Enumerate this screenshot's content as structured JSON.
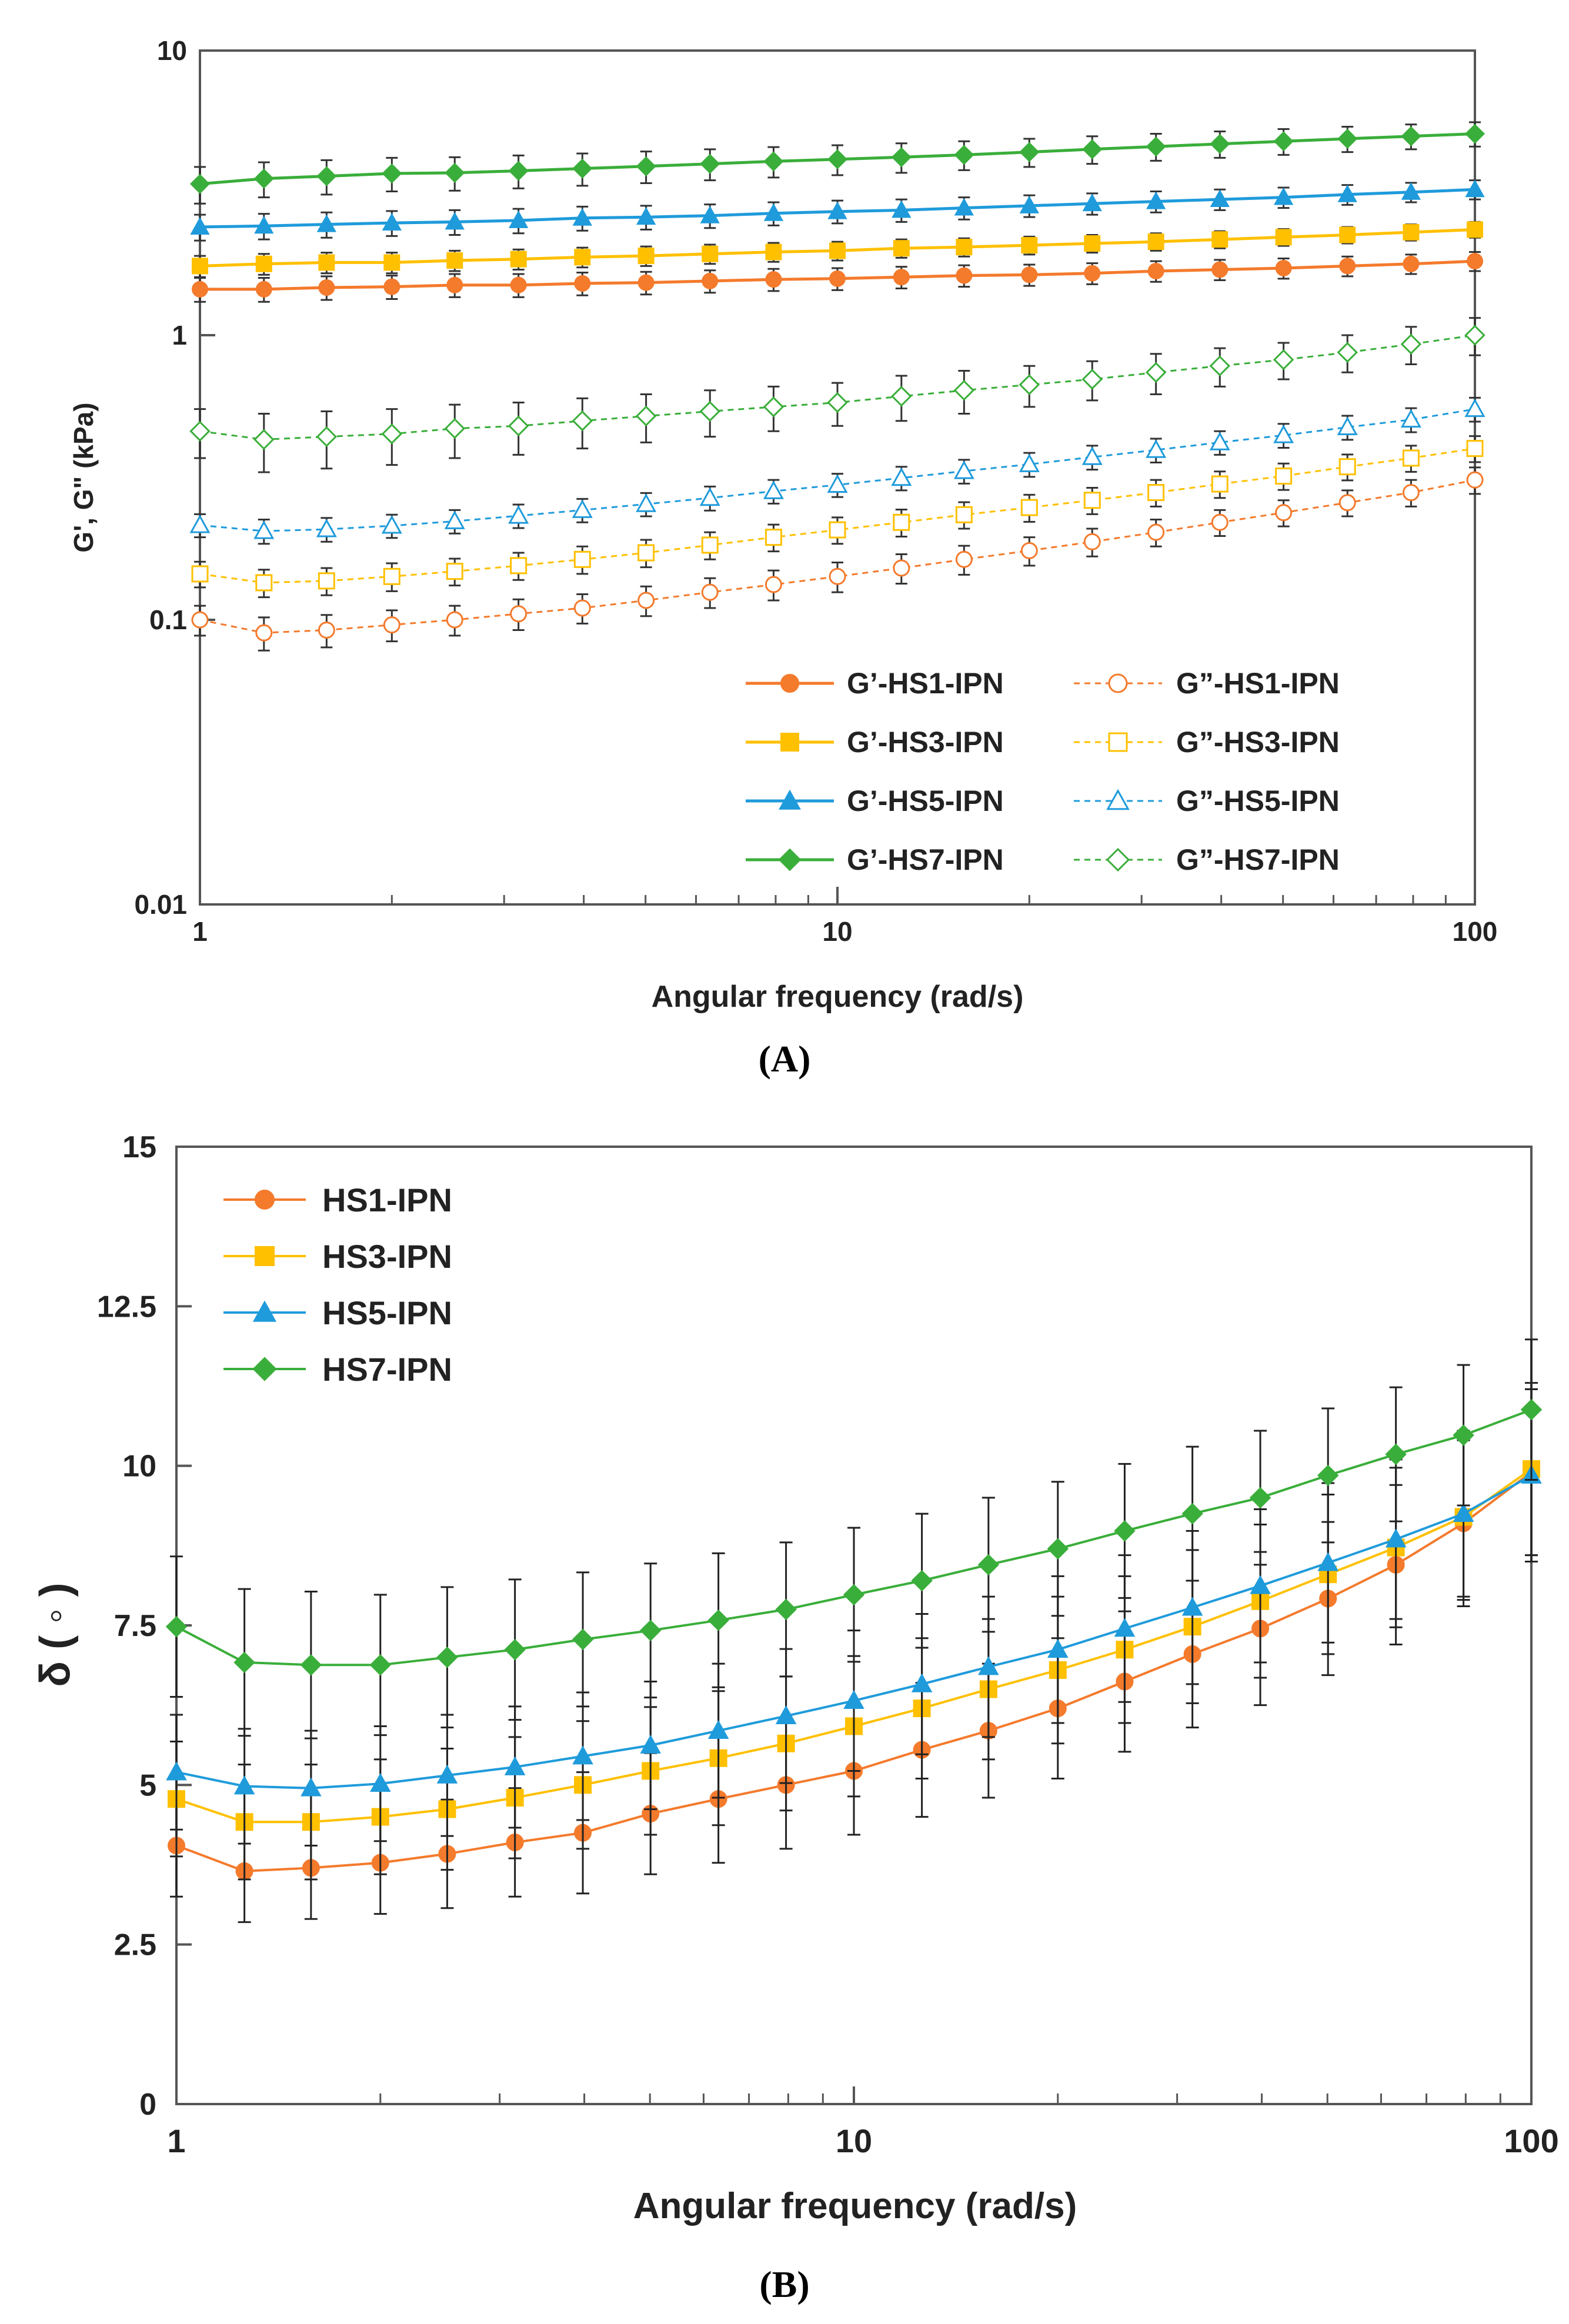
{
  "chart_data": [
    {
      "type": "line",
      "panel_label": "(A)",
      "xlabel": "Angular frequency (rad/s)",
      "ylabel": "G', G\" (kPa)",
      "xscale": "log",
      "yscale": "log",
      "xlim": [
        1,
        100
      ],
      "ylim": [
        0.01,
        10
      ],
      "x_tick_labels": [
        "1",
        "10",
        "100"
      ],
      "y_tick_labels": [
        "0.01",
        "0.1",
        "1",
        "10"
      ],
      "legend_position": "lower-right",
      "x": [
        1,
        1.26,
        1.58,
        2,
        2.51,
        3.16,
        3.98,
        5.01,
        6.31,
        7.94,
        10,
        12.6,
        15.8,
        20,
        25.1,
        31.6,
        39.8,
        50.1,
        63.1,
        79.4,
        100
      ],
      "series": [
        {
          "name": "G’-HS1-IPN",
          "color": "#F47A2C",
          "marker": "circle",
          "filled": true,
          "dashed": false,
          "values": [
            1.45,
            1.45,
            1.47,
            1.48,
            1.5,
            1.5,
            1.52,
            1.53,
            1.55,
            1.57,
            1.58,
            1.6,
            1.62,
            1.63,
            1.65,
            1.68,
            1.7,
            1.72,
            1.75,
            1.78,
            1.82
          ],
          "errors": [
            0.14,
            0.14,
            0.14,
            0.14,
            0.14,
            0.14,
            0.14,
            0.14,
            0.14,
            0.14,
            0.14,
            0.14,
            0.14,
            0.14,
            0.14,
            0.14,
            0.14,
            0.14,
            0.14,
            0.14,
            0.14
          ]
        },
        {
          "name": "G’-HS3-IPN",
          "color": "#FFC000",
          "marker": "square",
          "filled": true,
          "dashed": false,
          "values": [
            1.75,
            1.78,
            1.8,
            1.8,
            1.83,
            1.85,
            1.88,
            1.9,
            1.93,
            1.96,
            1.98,
            2.02,
            2.04,
            2.07,
            2.1,
            2.13,
            2.17,
            2.21,
            2.25,
            2.3,
            2.35
          ],
          "errors": [
            0.15,
            0.15,
            0.15,
            0.15,
            0.15,
            0.15,
            0.15,
            0.15,
            0.15,
            0.15,
            0.15,
            0.15,
            0.15,
            0.15,
            0.15,
            0.15,
            0.15,
            0.15,
            0.15,
            0.15,
            0.15
          ]
        },
        {
          "name": "G’-HS5-IPN",
          "color": "#1F9BDB",
          "marker": "triangle",
          "filled": true,
          "dashed": false,
          "values": [
            2.4,
            2.42,
            2.45,
            2.48,
            2.5,
            2.53,
            2.58,
            2.6,
            2.63,
            2.68,
            2.72,
            2.75,
            2.8,
            2.85,
            2.9,
            2.95,
            3.0,
            3.05,
            3.12,
            3.18,
            3.25
          ],
          "errors": [
            0.25,
            0.25,
            0.25,
            0.25,
            0.25,
            0.25,
            0.25,
            0.25,
            0.25,
            0.25,
            0.25,
            0.25,
            0.25,
            0.25,
            0.25,
            0.25,
            0.25,
            0.25,
            0.25,
            0.25,
            0.25
          ]
        },
        {
          "name": "G’-HS7-IPN",
          "color": "#3AAE3A",
          "marker": "diamond",
          "filled": true,
          "dashed": false,
          "values": [
            3.4,
            3.55,
            3.62,
            3.7,
            3.72,
            3.78,
            3.85,
            3.92,
            4.0,
            4.08,
            4.15,
            4.22,
            4.3,
            4.4,
            4.5,
            4.6,
            4.7,
            4.8,
            4.9,
            5.0,
            5.1
          ],
          "errors": [
            0.5,
            0.5,
            0.5,
            0.5,
            0.5,
            0.5,
            0.5,
            0.5,
            0.5,
            0.5,
            0.5,
            0.5,
            0.5,
            0.5,
            0.5,
            0.5,
            0.5,
            0.5,
            0.5,
            0.5,
            0.5
          ]
        },
        {
          "name": "G”-HS1-IPN",
          "color": "#F47A2C",
          "marker": "circle",
          "filled": false,
          "dashed": true,
          "values": [
            0.1,
            0.09,
            0.092,
            0.096,
            0.1,
            0.105,
            0.11,
            0.117,
            0.125,
            0.133,
            0.142,
            0.152,
            0.163,
            0.175,
            0.188,
            0.203,
            0.22,
            0.238,
            0.258,
            0.28,
            0.31
          ],
          "errors": [
            0.012,
            0.012,
            0.012,
            0.012,
            0.012,
            0.013,
            0.013,
            0.014,
            0.015,
            0.016,
            0.017,
            0.018,
            0.019,
            0.02,
            0.021,
            0.022,
            0.023,
            0.025,
            0.027,
            0.03,
            0.033
          ]
        },
        {
          "name": "G”-HS3-IPN",
          "color": "#FFC000",
          "marker": "square",
          "filled": false,
          "dashed": true,
          "values": [
            0.145,
            0.135,
            0.137,
            0.142,
            0.148,
            0.155,
            0.163,
            0.172,
            0.183,
            0.195,
            0.207,
            0.22,
            0.234,
            0.248,
            0.263,
            0.28,
            0.3,
            0.32,
            0.345,
            0.37,
            0.4
          ],
          "errors": [
            0.015,
            0.015,
            0.015,
            0.016,
            0.016,
            0.017,
            0.018,
            0.019,
            0.02,
            0.021,
            0.022,
            0.024,
            0.025,
            0.027,
            0.028,
            0.03,
            0.032,
            0.034,
            0.036,
            0.039,
            0.042
          ]
        },
        {
          "name": "G”-HS5-IPN",
          "color": "#1F9BDB",
          "marker": "triangle",
          "filled": false,
          "dashed": true,
          "values": [
            0.215,
            0.205,
            0.208,
            0.214,
            0.222,
            0.232,
            0.243,
            0.255,
            0.268,
            0.283,
            0.298,
            0.315,
            0.333,
            0.352,
            0.373,
            0.395,
            0.42,
            0.445,
            0.475,
            0.505,
            0.55
          ],
          "errors": [
            0.02,
            0.02,
            0.02,
            0.02,
            0.021,
            0.022,
            0.023,
            0.024,
            0.026,
            0.027,
            0.028,
            0.03,
            0.032,
            0.034,
            0.036,
            0.038,
            0.04,
            0.043,
            0.046,
            0.049,
            0.053
          ]
        },
        {
          "name": "G”-HS7-IPN",
          "color": "#3AAE3A",
          "marker": "diamond",
          "filled": false,
          "dashed": true,
          "values": [
            0.46,
            0.43,
            0.44,
            0.45,
            0.47,
            0.48,
            0.5,
            0.52,
            0.54,
            0.56,
            0.58,
            0.61,
            0.64,
            0.67,
            0.7,
            0.74,
            0.78,
            0.82,
            0.87,
            0.93,
            1.0
          ],
          "errors": [
            0.09,
            0.1,
            0.1,
            0.1,
            0.1,
            0.1,
            0.1,
            0.1,
            0.1,
            0.1,
            0.1,
            0.11,
            0.11,
            0.11,
            0.11,
            0.12,
            0.12,
            0.12,
            0.13,
            0.14,
            0.15
          ]
        }
      ]
    },
    {
      "type": "line",
      "panel_label": "(B)",
      "xlabel": "Angular frequency (rad/s)",
      "ylabel": "δ ( ◦ )",
      "xscale": "log",
      "yscale": "linear",
      "xlim": [
        1,
        100
      ],
      "ylim": [
        0,
        15
      ],
      "x_tick_labels": [
        "1",
        "10",
        "100"
      ],
      "y_tick_labels": [
        "0",
        "2.5",
        "5",
        "7.5",
        "10",
        "12.5",
        "15"
      ],
      "legend_position": "top-left",
      "x": [
        1,
        1.26,
        1.58,
        2,
        2.51,
        3.16,
        3.98,
        5.01,
        6.31,
        7.94,
        10,
        12.6,
        15.8,
        20,
        25.1,
        31.6,
        39.8,
        50.1,
        63.1,
        79.4,
        100
      ],
      "series": [
        {
          "name": "HS1-IPN",
          "color": "#F47A2C",
          "marker": "circle",
          "values": [
            4.05,
            3.65,
            3.7,
            3.78,
            3.92,
            4.1,
            4.25,
            4.55,
            4.78,
            5.0,
            5.22,
            5.55,
            5.85,
            6.2,
            6.62,
            7.05,
            7.45,
            7.92,
            8.45,
            9.1,
            9.9
          ],
          "errors": [
            0.8,
            0.8,
            0.8,
            0.8,
            0.85,
            0.85,
            0.95,
            0.95,
            1.0,
            1.0,
            1.0,
            1.05,
            1.05,
            1.1,
            1.1,
            1.15,
            1.2,
            1.2,
            1.25,
            1.3,
            1.3
          ]
        },
        {
          "name": "HS3-IPN",
          "color": "#FFC000",
          "marker": "square",
          "values": [
            4.78,
            4.42,
            4.42,
            4.5,
            4.62,
            4.8,
            5.0,
            5.22,
            5.42,
            5.65,
            5.92,
            6.2,
            6.5,
            6.8,
            7.12,
            7.48,
            7.88,
            8.3,
            8.72,
            9.2,
            9.95
          ],
          "errors": [
            0.9,
            0.9,
            0.9,
            0.9,
            0.95,
            0.95,
            1.0,
            1.0,
            1.05,
            1.05,
            1.1,
            1.1,
            1.1,
            1.15,
            1.15,
            1.2,
            1.2,
            1.25,
            1.25,
            1.3,
            1.35
          ]
        },
        {
          "name": "HS5-IPN",
          "color": "#1F9BDB",
          "marker": "triangle",
          "values": [
            5.2,
            4.98,
            4.95,
            5.02,
            5.15,
            5.28,
            5.45,
            5.62,
            5.85,
            6.08,
            6.32,
            6.58,
            6.85,
            7.12,
            7.45,
            7.78,
            8.12,
            8.48,
            8.85,
            9.25,
            9.85
          ],
          "errors": [
            0.9,
            0.9,
            0.9,
            0.9,
            0.95,
            0.95,
            1.0,
            1.0,
            1.05,
            1.05,
            1.1,
            1.1,
            1.1,
            1.15,
            1.15,
            1.2,
            1.2,
            1.25,
            1.25,
            1.3,
            1.35
          ]
        },
        {
          "name": "HS7-IPN",
          "color": "#3AAE3A",
          "marker": "diamond",
          "values": [
            7.48,
            6.92,
            6.88,
            6.88,
            7.0,
            7.12,
            7.28,
            7.42,
            7.58,
            7.75,
            7.98,
            8.2,
            8.45,
            8.7,
            8.98,
            9.25,
            9.5,
            9.85,
            10.18,
            10.48,
            10.88
          ],
          "errors": [
            1.1,
            1.15,
            1.15,
            1.1,
            1.1,
            1.1,
            1.05,
            1.05,
            1.05,
            1.05,
            1.05,
            1.05,
            1.05,
            1.05,
            1.05,
            1.05,
            1.05,
            1.05,
            1.05,
            1.1,
            1.1
          ]
        }
      ]
    }
  ]
}
